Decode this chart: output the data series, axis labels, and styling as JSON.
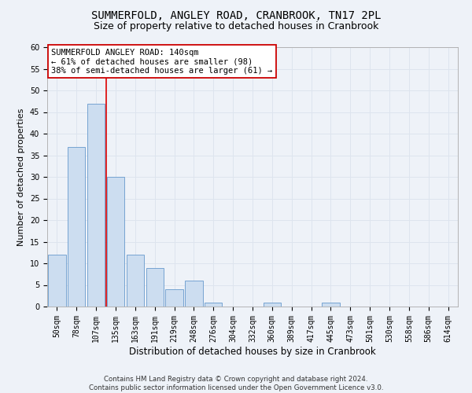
{
  "title": "SUMMERFOLD, ANGLEY ROAD, CRANBROOK, TN17 2PL",
  "subtitle": "Size of property relative to detached houses in Cranbrook",
  "xlabel": "Distribution of detached houses by size in Cranbrook",
  "ylabel": "Number of detached properties",
  "categories": [
    "50sqm",
    "78sqm",
    "107sqm",
    "135sqm",
    "163sqm",
    "191sqm",
    "219sqm",
    "248sqm",
    "276sqm",
    "304sqm",
    "332sqm",
    "360sqm",
    "389sqm",
    "417sqm",
    "445sqm",
    "473sqm",
    "501sqm",
    "530sqm",
    "558sqm",
    "586sqm",
    "614sqm"
  ],
  "values": [
    12,
    37,
    47,
    30,
    12,
    9,
    4,
    6,
    1,
    0,
    0,
    1,
    0,
    0,
    1,
    0,
    0,
    0,
    0,
    0,
    0
  ],
  "bar_color": "#ccddf0",
  "bar_edge_color": "#6699cc",
  "grid_color": "#dde4ee",
  "background_color": "#eef2f8",
  "vline_x": 2.5,
  "vline_color": "#dd0000",
  "annotation_text": "SUMMERFOLD ANGLEY ROAD: 140sqm\n← 61% of detached houses are smaller (98)\n38% of semi-detached houses are larger (61) →",
  "annotation_box_color": "#ffffff",
  "annotation_box_edge": "#cc0000",
  "ylim": [
    0,
    60
  ],
  "yticks": [
    0,
    5,
    10,
    15,
    20,
    25,
    30,
    35,
    40,
    45,
    50,
    55,
    60
  ],
  "footnote": "Contains HM Land Registry data © Crown copyright and database right 2024.\nContains public sector information licensed under the Open Government Licence v3.0.",
  "title_fontsize": 10,
  "subtitle_fontsize": 9,
  "xlabel_fontsize": 8.5,
  "ylabel_fontsize": 8,
  "tick_fontsize": 7,
  "annot_fontsize": 7.5
}
